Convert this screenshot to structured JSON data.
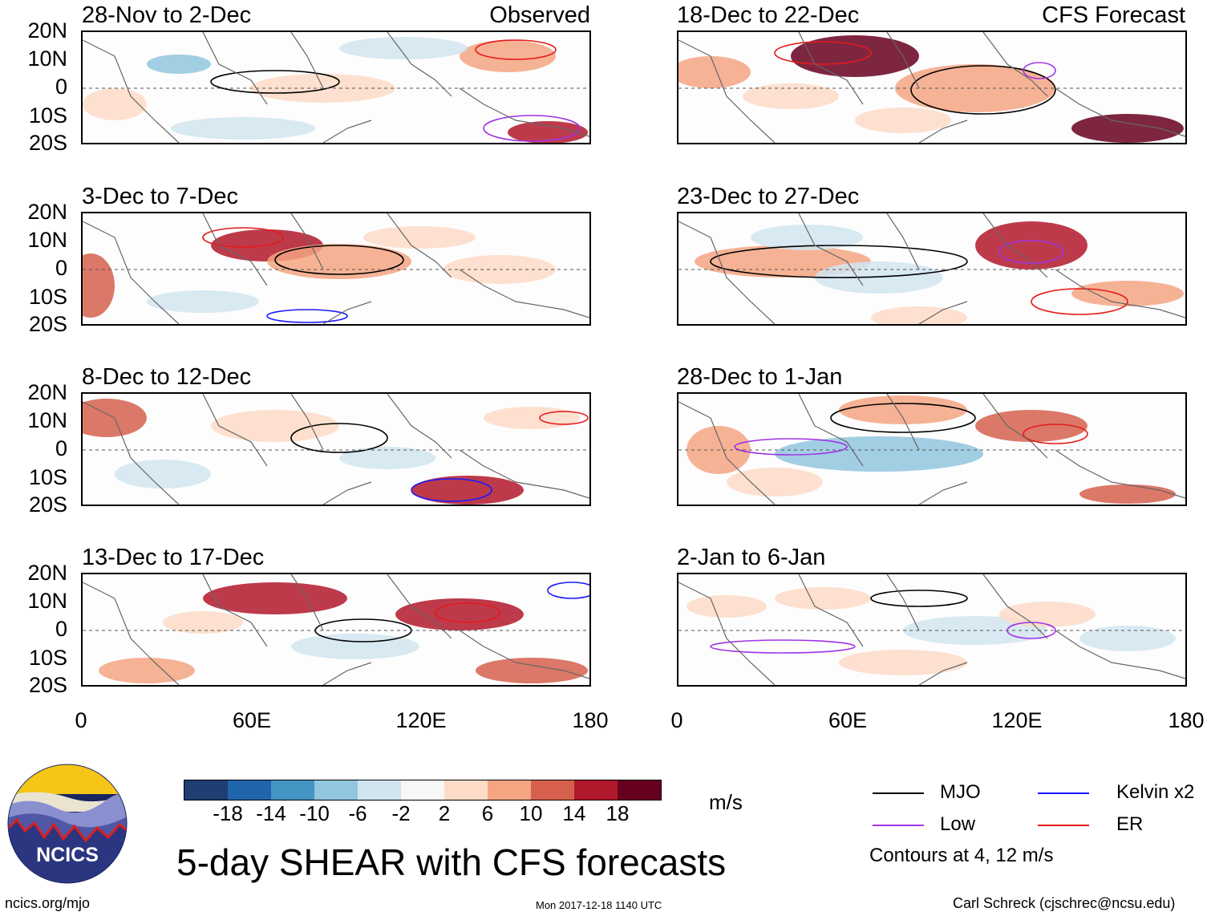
{
  "header": {
    "left_label": "Observed",
    "right_label": "CFS Forecast"
  },
  "panels": [
    {
      "id": "p1",
      "title": "28-Nov to 2-Dec",
      "column": "observed"
    },
    {
      "id": "p2",
      "title": "3-Dec to 7-Dec",
      "column": "observed"
    },
    {
      "id": "p3",
      "title": "8-Dec to 12-Dec",
      "column": "observed"
    },
    {
      "id": "p4",
      "title": "13-Dec to 17-Dec",
      "column": "observed"
    },
    {
      "id": "p5",
      "title": "18-Dec to 22-Dec",
      "column": "forecast"
    },
    {
      "id": "p6",
      "title": "23-Dec to 27-Dec",
      "column": "forecast"
    },
    {
      "id": "p7",
      "title": "28-Dec to 1-Jan",
      "column": "forecast"
    },
    {
      "id": "p8",
      "title": "2-Jan to 6-Jan",
      "column": "forecast"
    }
  ],
  "axes": {
    "lat_labels": [
      "20N",
      "10N",
      "0",
      "10S",
      "20S"
    ],
    "lon_labels": [
      "0",
      "60E",
      "120E",
      "180"
    ]
  },
  "colorbar": {
    "labels": [
      "-18",
      "-14",
      "-10",
      "-6",
      "-2",
      "2",
      "6",
      "10",
      "14",
      "18"
    ],
    "units": "m/s",
    "colors": [
      "#1f3f73",
      "#2166ac",
      "#4393c3",
      "#92c5de",
      "#d1e5f0",
      "#f7f7f7",
      "#fddbc7",
      "#f4a582",
      "#d6604d",
      "#b2182b",
      "#67001f"
    ]
  },
  "legend": {
    "items": [
      {
        "label": "MJO",
        "color": "#000000"
      },
      {
        "label": "Kelvin x2",
        "color": "#1a1aff"
      },
      {
        "label": "Low",
        "color": "#a033e6"
      },
      {
        "label": "ER",
        "color": "#e61a1a"
      }
    ],
    "note": "Contours at 4, 12 m/s"
  },
  "title": "5-day SHEAR with CFS forecasts",
  "logo": {
    "text": "NCICS"
  },
  "footer": {
    "url": "ncics.org/mjo",
    "timestamp": "Mon 2017-12-18 1140 UTC",
    "author": "Carl Schreck (cjschrec@ncsu.edu)"
  }
}
